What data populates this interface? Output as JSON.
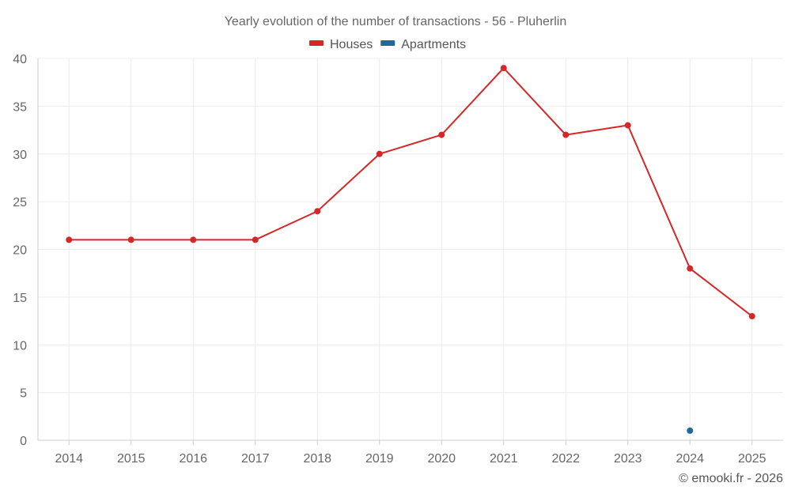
{
  "chart_data": {
    "type": "line",
    "title": "Yearly evolution of the number of transactions - 56 - Pluherlin",
    "categories": [
      "2014",
      "2015",
      "2016",
      "2017",
      "2018",
      "2019",
      "2020",
      "2021",
      "2022",
      "2023",
      "2024",
      "2025"
    ],
    "ylim": [
      0,
      40
    ],
    "yticks": [
      0,
      5,
      10,
      15,
      20,
      25,
      30,
      35,
      40
    ],
    "grid": true,
    "legend_position": "top-center",
    "series": [
      {
        "name": "Houses",
        "color": "#d62728",
        "values": [
          21,
          21,
          21,
          21,
          24,
          30,
          32,
          39,
          32,
          33,
          18,
          13
        ]
      },
      {
        "name": "Apartments",
        "color": "#1f6a9a",
        "values": [
          null,
          null,
          null,
          null,
          null,
          null,
          null,
          null,
          null,
          null,
          1,
          null
        ]
      }
    ],
    "xlabel": "",
    "ylabel": ""
  },
  "credit": "© emooki.fr - 2026"
}
